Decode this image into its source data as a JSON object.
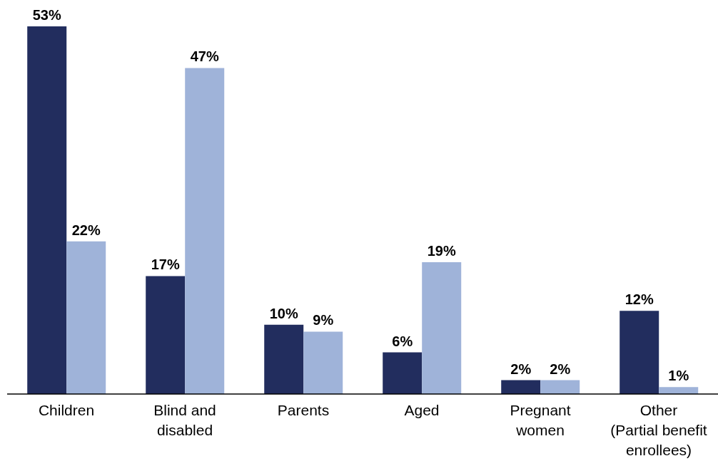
{
  "chart_data": {
    "type": "bar",
    "categories": [
      "Children",
      "Blind and\ndisabled",
      "Parents",
      "Aged",
      "Pregnant\nwomen",
      "Other\n(Partial benefit\nenrollees)"
    ],
    "series": [
      {
        "color": "#222d5e",
        "values": [
          53,
          17,
          10,
          6,
          2,
          12
        ],
        "value_labels": [
          "53%",
          "17%",
          "10%",
          "6%",
          "2%",
          "12%"
        ]
      },
      {
        "color": "#9fb3d9",
        "values": [
          22,
          47,
          9,
          19,
          2,
          1
        ],
        "value_labels": [
          "22%",
          "47%",
          "9%",
          "19%",
          "2%",
          "1%"
        ]
      }
    ],
    "grid": false,
    "legend": false
  }
}
